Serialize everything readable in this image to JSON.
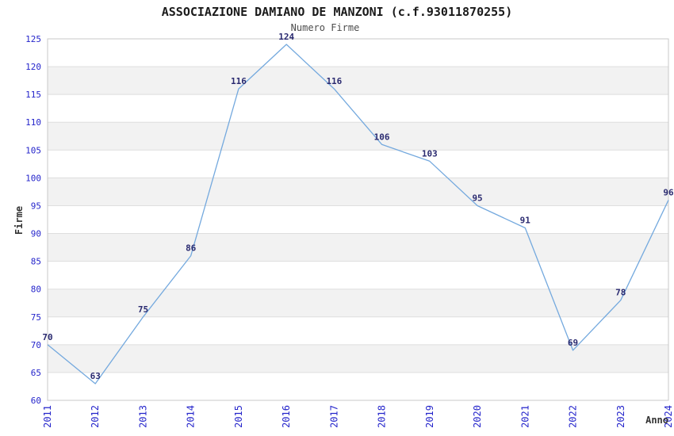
{
  "page": {
    "title": "ASSOCIAZIONE DAMIANO DE MANZONI (c.f.93011870255)",
    "subtitle": "Numero Firme"
  },
  "chart_data": {
    "type": "line",
    "title": "ASSOCIAZIONE DAMIANO DE MANZONI (c.f.93011870255)",
    "subtitle": "Numero Firme",
    "xlabel": "Anno",
    "ylabel": "Firme",
    "categories": [
      "2011",
      "2012",
      "2013",
      "2014",
      "2015",
      "2016",
      "2017",
      "2018",
      "2019",
      "2020",
      "2021",
      "2022",
      "2023",
      "2024"
    ],
    "values": [
      70,
      63,
      75,
      86,
      116,
      124,
      116,
      106,
      103,
      95,
      91,
      69,
      78,
      96
    ],
    "ylim": [
      60,
      125
    ],
    "ytick_step": 5,
    "yticks": [
      60,
      65,
      70,
      75,
      80,
      85,
      90,
      95,
      100,
      105,
      110,
      115,
      120,
      125
    ],
    "grid": "horizontal-gridlines-with-alternating-bands",
    "legend": "none",
    "data_labels": "shown above each point",
    "x_tick_rotation": 90,
    "colors": {
      "line": "#74a9de",
      "tick_label": "#2525cb",
      "data_label": "#2a2a70",
      "band": "#f2f2f2",
      "gridline": "#dedede",
      "border": "#c8c8c8",
      "title": "#1a1a1a",
      "subtitle": "#4d4d4d",
      "axis_title": "#333333",
      "background": "#ffffff"
    }
  }
}
